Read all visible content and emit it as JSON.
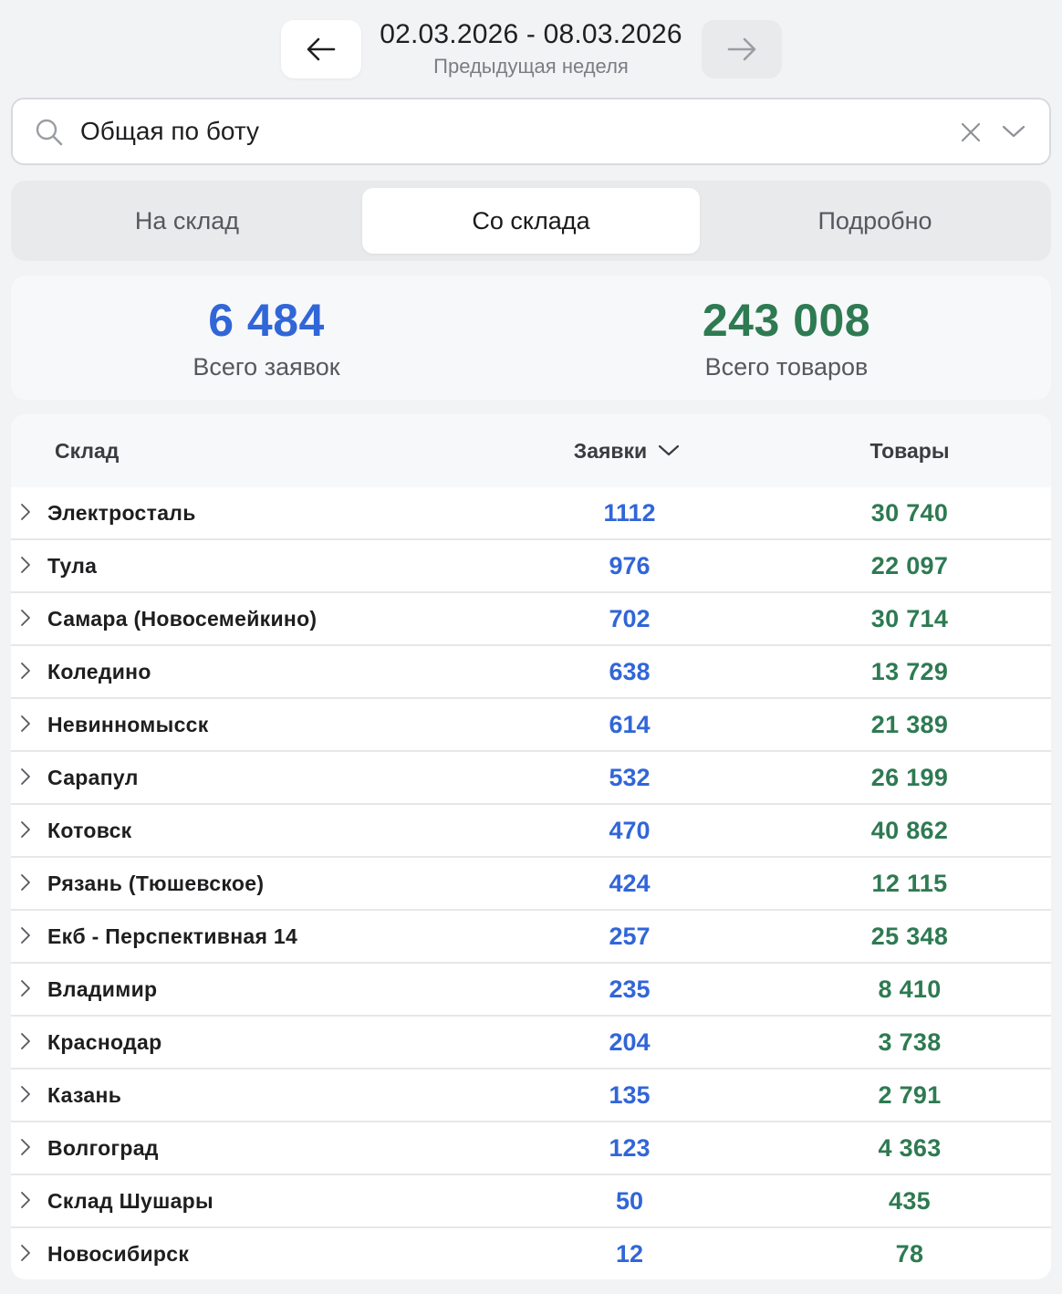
{
  "period": {
    "range": "02.03.2026 - 08.03.2026",
    "label": "Предыдущая неделя"
  },
  "search": {
    "value": "Общая по боту"
  },
  "tabs": [
    {
      "label": "На склад",
      "active": false
    },
    {
      "label": "Со склада",
      "active": true
    },
    {
      "label": "Подробно",
      "active": false
    }
  ],
  "summary": {
    "orders_total": "6 484",
    "orders_label": "Всего заявок",
    "goods_total": "243 008",
    "goods_label": "Всего товаров"
  },
  "table": {
    "headers": {
      "warehouse": "Склад",
      "orders": "Заявки",
      "goods": "Товары"
    },
    "rows": [
      {
        "warehouse": "Электросталь",
        "orders": "1112",
        "goods": "30 740"
      },
      {
        "warehouse": "Тула",
        "orders": "976",
        "goods": "22 097"
      },
      {
        "warehouse": "Самара (Новосемейкино)",
        "orders": "702",
        "goods": "30 714"
      },
      {
        "warehouse": "Коледино",
        "orders": "638",
        "goods": "13 729"
      },
      {
        "warehouse": "Невинномысск",
        "orders": "614",
        "goods": "21 389"
      },
      {
        "warehouse": "Сарапул",
        "orders": "532",
        "goods": "26 199"
      },
      {
        "warehouse": "Котовск",
        "orders": "470",
        "goods": "40 862"
      },
      {
        "warehouse": "Рязань (Тюшевское)",
        "orders": "424",
        "goods": "12 115"
      },
      {
        "warehouse": "Екб - Перспективная 14",
        "orders": "257",
        "goods": "25 348"
      },
      {
        "warehouse": "Владимир",
        "orders": "235",
        "goods": "8 410"
      },
      {
        "warehouse": "Краснодар",
        "orders": "204",
        "goods": "3 738"
      },
      {
        "warehouse": "Казань",
        "orders": "135",
        "goods": "2 791"
      },
      {
        "warehouse": "Волгоград",
        "orders": "123",
        "goods": "4 363"
      },
      {
        "warehouse": "Склад Шушары",
        "orders": "50",
        "goods": "435"
      },
      {
        "warehouse": "Новосибирск",
        "orders": "12",
        "goods": "78"
      }
    ]
  },
  "colors": {
    "orders_accent": "#3166d8",
    "goods_accent": "#2e7a52"
  }
}
